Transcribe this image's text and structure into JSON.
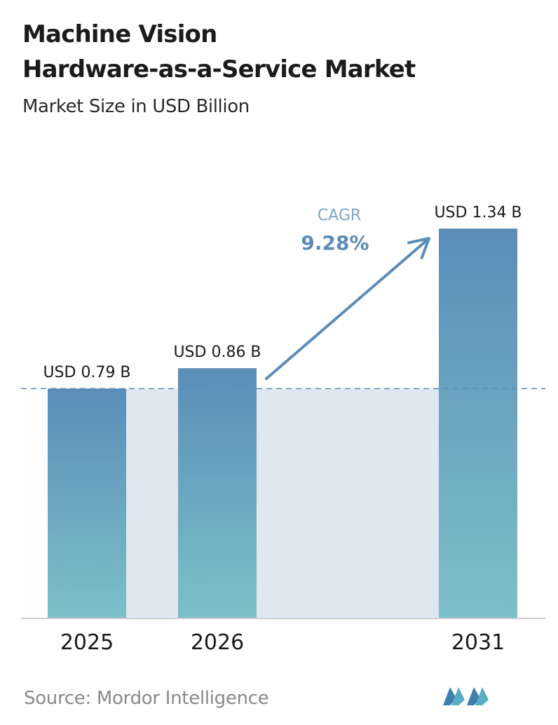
{
  "header": {
    "title_line1": "Machine Vision",
    "title_line2": "Hardware-as-a-Service Market",
    "subtitle": "Market Size in USD Billion"
  },
  "chart_data": {
    "type": "bar",
    "categories": [
      "2025",
      "2026",
      "2031"
    ],
    "values": [
      0.79,
      0.86,
      1.34
    ],
    "data_labels": [
      "USD 0.79 B",
      "USD 0.86 B",
      "USD 1.34 B"
    ],
    "title": "Machine Vision Hardware-as-a-Service Market",
    "subtitle": "Market Size in USD Billion",
    "xlabel": "",
    "ylabel": "",
    "ylim": [
      0,
      1.34
    ],
    "grid": false,
    "reference_line_value": 0.79,
    "annotation": {
      "label": "CAGR",
      "value": "9.28%"
    },
    "colors": {
      "bar_top": "#5b8db8",
      "bar_bottom": "#7cc0c8",
      "band": "#dfe8f1",
      "arrow": "#5b8db8",
      "cagr_label": "#7aa6c8",
      "cagr_value": "#5b8db8",
      "axis": "#cccccc",
      "dashed_line": "#5b8db8"
    }
  },
  "footer": {
    "source": "Source: Mordor Intelligence",
    "logo_icon": "mordor-intelligence-logo-icon"
  }
}
